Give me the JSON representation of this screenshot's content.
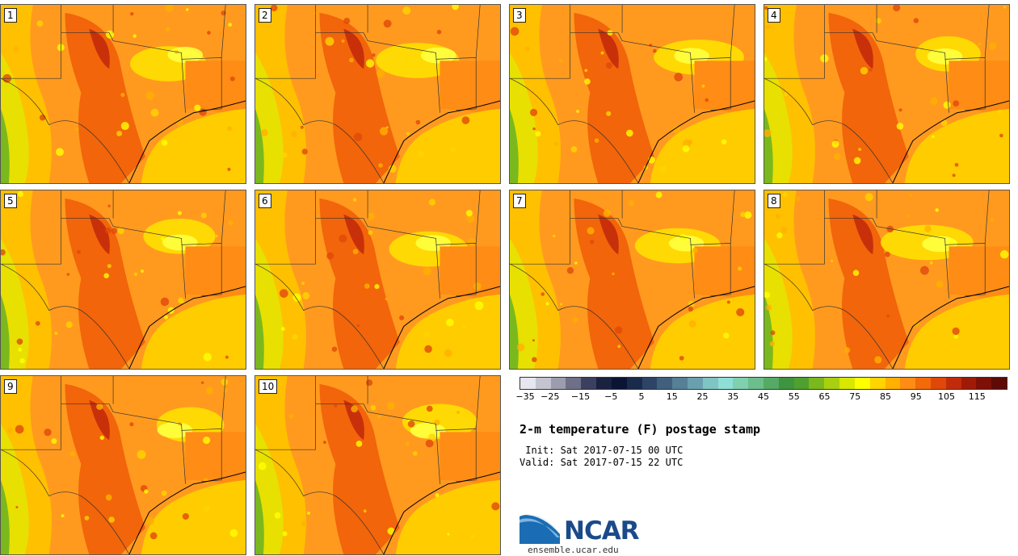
{
  "panels": [
    {
      "label": "1"
    },
    {
      "label": "2"
    },
    {
      "label": "3"
    },
    {
      "label": "4"
    },
    {
      "label": "5"
    },
    {
      "label": "6"
    },
    {
      "label": "7"
    },
    {
      "label": "8"
    },
    {
      "label": "9"
    },
    {
      "label": "10"
    }
  ],
  "colorbar": {
    "colors": [
      "#e6e6ee",
      "#c4c4d0",
      "#9c9caf",
      "#6e7087",
      "#3c4060",
      "#1a2240",
      "#0a1535",
      "#1a2a4a",
      "#2e4466",
      "#40607e",
      "#558096",
      "#6aa0ae",
      "#80c4c4",
      "#8ee0d6",
      "#80d0b0",
      "#6cbe8c",
      "#55aa66",
      "#3f9440",
      "#4fa02e",
      "#7ab81e",
      "#a8d010",
      "#d8e800",
      "#ffff00",
      "#ffd400",
      "#ffb000",
      "#ff8c14",
      "#f26a0a",
      "#e0480a",
      "#c02c0a",
      "#a01a08",
      "#7e1008",
      "#5e0a06"
    ],
    "tick_labels": [
      "−35",
      "−25",
      "−15",
      "−5",
      "5",
      "15",
      "25",
      "35",
      "45",
      "55",
      "65",
      "75",
      "85",
      "95",
      "105",
      "115"
    ]
  },
  "title": "2-m temperature (F) postage stamp",
  "init": " Init: Sat 2017-07-15 00 UTC",
  "valid": "Valid: Sat 2017-07-15 22 UTC",
  "logo_text": "NCAR",
  "url": "ensemble.ucar.edu"
}
